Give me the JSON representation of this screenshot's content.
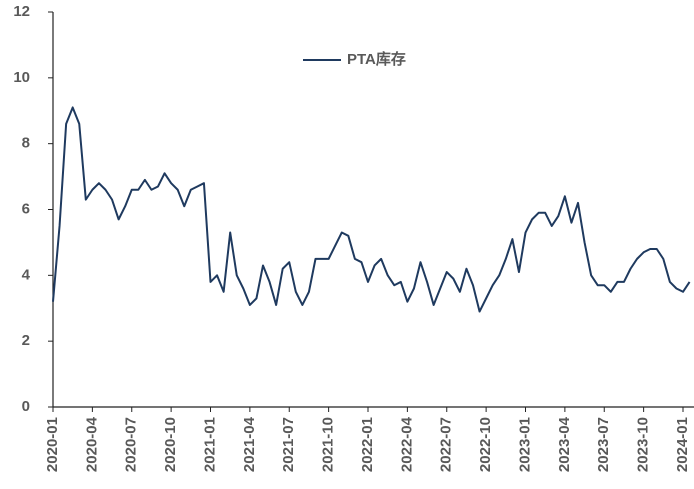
{
  "chart_data": {
    "type": "line",
    "categories": [
      "2020-01",
      null,
      null,
      null,
      null,
      null,
      "2020-04",
      null,
      null,
      null,
      null,
      null,
      "2020-07",
      null,
      null,
      null,
      null,
      null,
      "2020-10",
      null,
      null,
      null,
      null,
      null,
      "2021-01",
      null,
      null,
      null,
      null,
      null,
      "2021-04",
      null,
      null,
      null,
      null,
      null,
      "2021-07",
      null,
      null,
      null,
      null,
      null,
      "2021-10",
      null,
      null,
      null,
      null,
      null,
      "2022-01",
      null,
      null,
      null,
      null,
      null,
      "2022-04",
      null,
      null,
      null,
      null,
      null,
      "2022-07",
      null,
      null,
      null,
      null,
      null,
      "2022-10",
      null,
      null,
      null,
      null,
      null,
      "2023-01",
      null,
      null,
      null,
      null,
      null,
      "2023-04",
      null,
      null,
      null,
      null,
      null,
      "2023-07",
      null,
      null,
      null,
      null,
      null,
      "2023-10",
      null,
      null,
      null,
      null,
      null,
      "2024-01",
      null
    ],
    "series": [
      {
        "name": "PTA库存",
        "color": "#1f3a5f",
        "values": [
          3.2,
          5.5,
          8.6,
          9.1,
          8.6,
          6.3,
          6.6,
          6.8,
          6.6,
          6.3,
          5.7,
          6.1,
          6.6,
          6.6,
          6.9,
          6.6,
          6.7,
          7.1,
          6.8,
          6.6,
          6.1,
          6.6,
          6.7,
          6.8,
          3.8,
          4.0,
          3.5,
          5.3,
          4.0,
          3.6,
          3.1,
          3.3,
          4.3,
          3.8,
          3.1,
          4.2,
          4.4,
          3.5,
          3.1,
          3.5,
          4.5,
          4.5,
          4.5,
          4.9,
          5.3,
          5.2,
          4.5,
          4.4,
          3.8,
          4.3,
          4.5,
          4.0,
          3.7,
          3.8,
          3.2,
          3.6,
          4.4,
          3.8,
          3.1,
          3.6,
          4.1,
          3.9,
          3.5,
          4.2,
          3.7,
          2.9,
          3.3,
          3.7,
          4.0,
          4.5,
          5.1,
          4.1,
          5.3,
          5.7,
          5.9,
          5.9,
          5.5,
          5.8,
          6.4,
          5.6,
          6.2,
          5.0,
          4.0,
          3.7,
          3.7,
          3.5,
          3.8,
          3.8,
          4.2,
          4.5,
          4.7,
          4.8,
          4.8,
          4.5,
          3.8,
          3.6,
          3.5,
          3.8
        ]
      }
    ],
    "ylim": [
      0,
      12
    ],
    "yticks": [
      0,
      2,
      4,
      6,
      8,
      10,
      12
    ],
    "grid": false,
    "legend": "top"
  }
}
